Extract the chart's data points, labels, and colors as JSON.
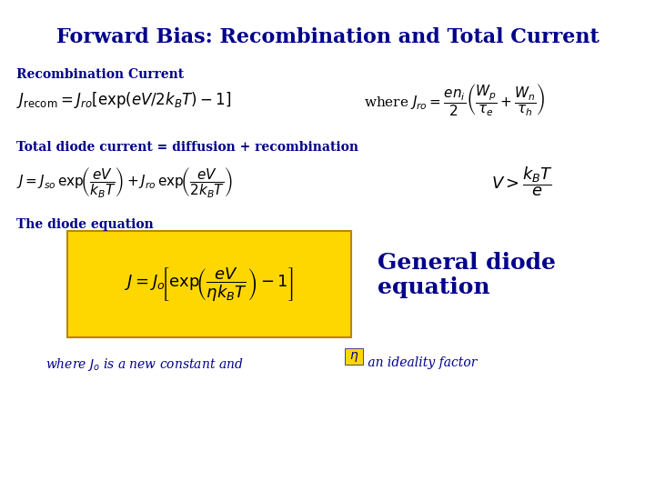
{
  "title": "Forward Bias: Recombination and Total Current",
  "bg_color": "#FFFFFF",
  "blue": "#00008B",
  "black": "#000000",
  "gold": "#FFD700",
  "gold_edge": "#B8860B",
  "title_fontsize": 16,
  "label_fontsize": 10,
  "eq1_fontsize": 12,
  "eq2_fontsize": 11,
  "eq3_fontsize": 13,
  "general_fontsize": 18,
  "where_fontsize": 10,
  "label_recom": "Recombination Current",
  "label_total": "Total diode current = diffusion + recombination",
  "label_diode": "The diode equation",
  "label_general": "General diode\nequation",
  "eq1_left": "$J_{\\mathrm{recom}} = J_{ro}[\\mathrm{exp}(eV/2k_BT)-1]$",
  "eq1_right": "where $J_{ro} = \\dfrac{en_i}{2}\\left(\\dfrac{W_p}{\\tau_e}+\\dfrac{W_n}{\\tau_h}\\right)$",
  "eq2_left": "$J = J_{so}\\,\\mathrm{exp}\\!\\left(\\dfrac{eV}{k_BT}\\right)+J_{ro}\\,\\mathrm{exp}\\!\\left(\\dfrac{eV}{2k_BT}\\right)$",
  "eq2_right": "$V > \\dfrac{k_BT}{e}$",
  "eq3": "$J = J_o\\!\\left[\\mathrm{exp}\\!\\left(\\dfrac{eV}{\\eta k_BT}\\right)-1\\right]$",
  "where_text1": "where $J_o$ is a new constant and ",
  "where_eta": "$\\eta$",
  "where_text2": " an ideality factor"
}
